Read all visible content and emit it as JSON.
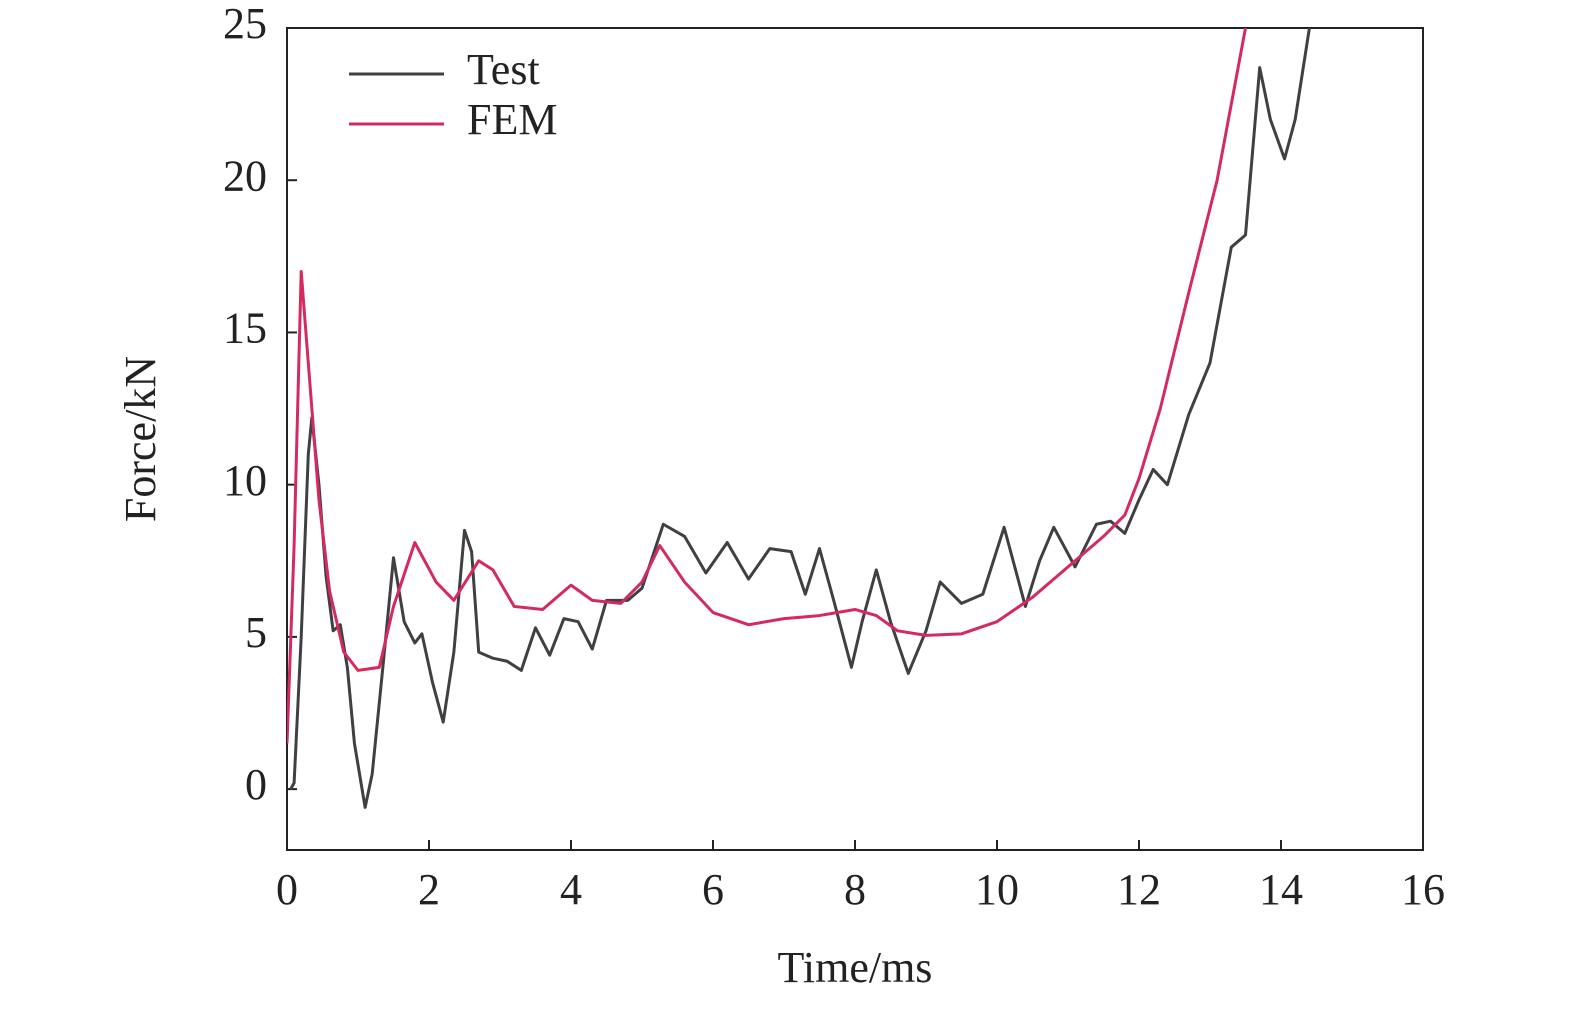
{
  "chart_data": {
    "type": "line",
    "xlabel": "Time/ms",
    "ylabel": "Force/kN",
    "xlim": [
      0,
      16
    ],
    "xticks": [
      0,
      2,
      4,
      6,
      8,
      10,
      12,
      14,
      16
    ],
    "ylim": [
      -2,
      25
    ],
    "yticks": [
      0,
      5,
      10,
      15,
      20,
      25
    ],
    "legend": "upper left",
    "series": [
      {
        "name": "Test",
        "color": "#404040",
        "x": [
          0.05,
          0.1,
          0.2,
          0.3,
          0.35,
          0.45,
          0.55,
          0.65,
          0.75,
          0.85,
          0.95,
          1.1,
          1.2,
          1.35,
          1.5,
          1.65,
          1.8,
          1.9,
          2.05,
          2.2,
          2.35,
          2.5,
          2.6,
          2.7,
          2.9,
          3.1,
          3.3,
          3.5,
          3.7,
          3.9,
          4.1,
          4.3,
          4.5,
          4.8,
          5.0,
          5.3,
          5.6,
          5.9,
          6.2,
          6.5,
          6.8,
          7.1,
          7.3,
          7.5,
          7.7,
          7.95,
          8.1,
          8.3,
          8.5,
          8.75,
          9.0,
          9.2,
          9.5,
          9.8,
          10.1,
          10.4,
          10.6,
          10.8,
          11.1,
          11.4,
          11.6,
          11.8,
          12.0,
          12.2,
          12.4,
          12.7,
          13.0,
          13.3,
          13.5,
          13.7,
          13.85,
          14.05,
          14.2,
          14.4
        ],
        "values": [
          0,
          0.2,
          5,
          11,
          12.2,
          10,
          7,
          5.2,
          5.4,
          4,
          1.5,
          -0.6,
          0.5,
          4,
          7.6,
          5.5,
          4.8,
          5.1,
          3.5,
          2.2,
          4.5,
          8.5,
          7.8,
          4.5,
          4.3,
          4.2,
          3.9,
          5.3,
          4.4,
          5.6,
          5.5,
          4.6,
          6.2,
          6.2,
          6.6,
          8.7,
          8.3,
          7.1,
          8.1,
          6.9,
          7.9,
          7.8,
          6.4,
          7.9,
          6.2,
          4,
          5.5,
          7.2,
          5.5,
          3.8,
          5.2,
          6.8,
          6.1,
          6.4,
          8.6,
          6,
          7.5,
          8.6,
          7.3,
          8.7,
          8.8,
          8.4,
          9.5,
          10.5,
          10,
          12.3,
          14,
          17.8,
          18.2,
          23.7,
          22,
          20.7,
          22,
          25
        ]
      },
      {
        "name": "FEM",
        "color": "#d42a5e",
        "x": [
          0,
          0.1,
          0.2,
          0.3,
          0.45,
          0.6,
          0.8,
          1.0,
          1.3,
          1.5,
          1.8,
          2.1,
          2.35,
          2.7,
          2.9,
          3.2,
          3.6,
          4.0,
          4.3,
          4.7,
          5.0,
          5.25,
          5.6,
          6.0,
          6.5,
          7.0,
          7.5,
          8.0,
          8.3,
          8.6,
          9.0,
          9.5,
          10.0,
          10.5,
          11.0,
          11.5,
          11.8,
          12.0,
          12.3,
          12.7,
          13.1,
          13.5
        ],
        "values": [
          1.5,
          8,
          17,
          14,
          9.5,
          6.5,
          4.5,
          3.9,
          4,
          6,
          8.1,
          6.8,
          6.2,
          7.5,
          7.2,
          6,
          5.9,
          6.7,
          6.2,
          6.1,
          6.8,
          8,
          6.8,
          5.8,
          5.4,
          5.6,
          5.7,
          5.9,
          5.7,
          5.2,
          5.05,
          5.1,
          5.5,
          6.3,
          7.3,
          8.3,
          9,
          10.2,
          12.5,
          16.3,
          20,
          25
        ]
      }
    ]
  }
}
